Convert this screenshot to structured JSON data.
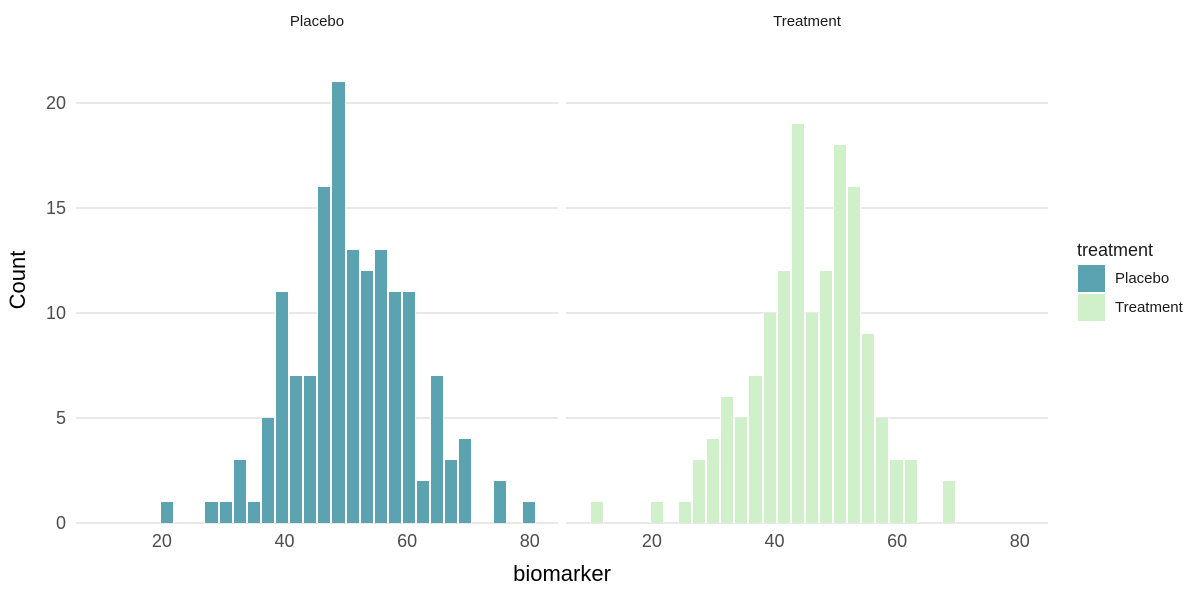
{
  "chart_data": {
    "type": "histogram",
    "faceted_by": "treatment",
    "xlabel": "biomarker",
    "ylabel": "Count",
    "xlim": [
      6,
      84.6
    ],
    "ylim": [
      0,
      23
    ],
    "x_ticks": [
      20,
      40,
      60,
      80
    ],
    "y_ticks": [
      0,
      5,
      10,
      15,
      20
    ],
    "binwidth": 2.3,
    "grid": "horizontal-major-only",
    "background_color": "#FFFFFF",
    "gridline_color": "#E8E8E8",
    "tick_label_color": "#4D4D4D",
    "legend": {
      "title": "treatment",
      "position": "right",
      "entries": [
        {
          "label": "Placebo",
          "color": "#5CA3B1"
        },
        {
          "label": "Treatment",
          "color": "#D0F0CA"
        }
      ]
    },
    "facets": [
      {
        "label": "Placebo",
        "fill": "#5CA3B1",
        "bars": [
          [
            20.8,
            1
          ],
          [
            28.1,
            1
          ],
          [
            30.4,
            1
          ],
          [
            32.7,
            3
          ],
          [
            35.0,
            1
          ],
          [
            37.3,
            5
          ],
          [
            39.6,
            11
          ],
          [
            41.9,
            7
          ],
          [
            44.2,
            7
          ],
          [
            46.5,
            16
          ],
          [
            48.8,
            21
          ],
          [
            51.1,
            13
          ],
          [
            53.4,
            12
          ],
          [
            55.7,
            13
          ],
          [
            58.0,
            11
          ],
          [
            60.3,
            11
          ],
          [
            62.6,
            2
          ],
          [
            64.9,
            7
          ],
          [
            67.2,
            3
          ],
          [
            69.5,
            4
          ],
          [
            75.1,
            2
          ],
          [
            79.9,
            1
          ]
        ]
      },
      {
        "label": "Treatment",
        "fill": "#D0F0CA",
        "bars": [
          [
            11.0,
            1
          ],
          [
            20.8,
            1
          ],
          [
            25.4,
            1
          ],
          [
            27.7,
            3
          ],
          [
            30.0,
            4
          ],
          [
            32.3,
            6
          ],
          [
            34.6,
            5
          ],
          [
            36.9,
            7
          ],
          [
            39.2,
            10
          ],
          [
            41.5,
            12
          ],
          [
            43.8,
            19
          ],
          [
            46.1,
            10
          ],
          [
            48.4,
            12
          ],
          [
            50.7,
            18
          ],
          [
            53.0,
            16
          ],
          [
            55.3,
            9
          ],
          [
            57.6,
            5
          ],
          [
            59.9,
            3
          ],
          [
            62.2,
            3
          ],
          [
            68.5,
            2
          ]
        ]
      }
    ]
  }
}
